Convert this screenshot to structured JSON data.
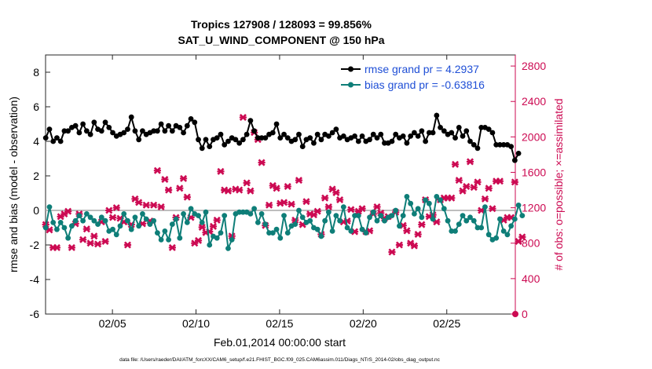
{
  "chart_data": {
    "type": "line",
    "title": "Tropics 127908 / 128093 = 99.856%",
    "subtitle": "SAT_U_WIND_COMPONENT @ 150 hPa",
    "xlabel": "Feb.01,2014 00:00:00 start",
    "ylabel": "rmse and bias (model - observation)",
    "ylabel_right": "# of obs: o=possible; ×=assimilated",
    "xlim": [
      1,
      29.1
    ],
    "ylim": [
      -6,
      9
    ],
    "ylim_right": [
      0,
      2925
    ],
    "x_tick_values": [
      5,
      10,
      15,
      20,
      25
    ],
    "x_tick_labels": [
      "02/05",
      "02/10",
      "02/15",
      "02/20",
      "02/25"
    ],
    "y_ticks": [
      "-6",
      "-4",
      "-2",
      "0",
      "2",
      "4",
      "6",
      "8"
    ],
    "y_tick_values": [
      -6,
      -4,
      -2,
      0,
      2,
      4,
      6,
      8
    ],
    "y_right_ticks": [
      "0",
      "400",
      "800",
      "1200",
      "1600",
      "2000",
      "2400",
      "2800"
    ],
    "y_right_tick_values": [
      0,
      400,
      800,
      1200,
      1600,
      2000,
      2400,
      2800
    ],
    "legend": [
      "rmse grand pr = 4.2937",
      "bias grand pr = -0.63816"
    ],
    "legend_position": "top-right",
    "zero_line": true,
    "series": [
      {
        "name": "rmse grand pr = 4.2937",
        "color": "#000000",
        "marker": "circle",
        "values": [
          4.2,
          4.7,
          4.0,
          4.2,
          4.0,
          4.6,
          4.6,
          4.8,
          4.9,
          4.5,
          5.0,
          4.6,
          4.4,
          5.1,
          4.7,
          4.6,
          5.1,
          4.8,
          4.5,
          4.3,
          4.4,
          4.5,
          4.7,
          5.4,
          4.6,
          4.1,
          4.6,
          4.4,
          4.5,
          4.6,
          4.6,
          5.0,
          4.6,
          4.9,
          4.6,
          4.9,
          4.8,
          4.5,
          4.9,
          5.3,
          5.1,
          4.1,
          3.6,
          4.1,
          3.7,
          4.1,
          4.2,
          4.4,
          3.8,
          4.0,
          4.2,
          4.1,
          3.9,
          4.1,
          4.4,
          5.2,
          4.6,
          4.2,
          4.2,
          4.2,
          4.4,
          4.5,
          5.0,
          4.2,
          4.4,
          4.2,
          4.0,
          4.1,
          4.4,
          3.7,
          4.1,
          4.2,
          3.9,
          4.4,
          4.1,
          4.4,
          4.3,
          4.5,
          4.7,
          4.2,
          4.3,
          4.1,
          4.2,
          4.3,
          4.0,
          4.3,
          4.0,
          4.1,
          4.4,
          4.2,
          4.4,
          3.9,
          3.9,
          4.0,
          4.4,
          4.2,
          4.3,
          3.9,
          4.3,
          4.5,
          4.3,
          4.6,
          4.0,
          4.5,
          4.5,
          5.5,
          4.8,
          4.6,
          4.4,
          4.5,
          4.2,
          4.8,
          4.3,
          4.6,
          4.0,
          3.8,
          3.6,
          4.8,
          4.8,
          4.7,
          4.5,
          3.8,
          3.8,
          3.8,
          3.8,
          3.7,
          2.9,
          3.3
        ]
      },
      {
        "name": "bias grand pr = -0.63816",
        "color": "#0e7e78",
        "marker": "circle",
        "values": [
          -1.0,
          0.2,
          -0.7,
          -1.1,
          -0.7,
          -1.0,
          -1.6,
          -0.9,
          -0.6,
          -0.3,
          -0.6,
          -0.2,
          -0.4,
          -0.6,
          -0.8,
          -0.4,
          -0.6,
          -1.2,
          -1.1,
          -1.4,
          -0.9,
          -0.2,
          -0.6,
          -1.1,
          -0.4,
          -0.9,
          -0.2,
          -0.5,
          -0.8,
          -0.6,
          -1.3,
          -1.7,
          -1.2,
          -1.7,
          -0.8,
          -0.5,
          -1.6,
          -0.2,
          -0.7,
          0.1,
          -0.2,
          -0.3,
          -0.7,
          -0.1,
          -2.0,
          -1.5,
          -1.6,
          -1.3,
          -0.3,
          -2.2,
          -1.7,
          -0.2,
          -0.1,
          -0.1,
          -0.1,
          -0.2,
          0.1,
          -0.7,
          -0.2,
          -0.8,
          -1.3,
          -1.3,
          -1.1,
          -1.6,
          -0.3,
          -1.3,
          -0.9,
          -0.8,
          0.0,
          -0.4,
          -0.7,
          -0.6,
          -1.0,
          -1.1,
          -1.5,
          -0.6,
          -0.1,
          -1.2,
          -0.3,
          -0.6,
          0.2,
          -1.0,
          -1.2,
          -0.3,
          -0.3,
          -1.1,
          -1.3,
          -0.4,
          -0.1,
          -0.6,
          -0.3,
          -0.6,
          -0.4,
          -0.3,
          0.0,
          -0.9,
          -0.3,
          0.8,
          0.4,
          -0.2,
          0.1,
          -0.4,
          0.6,
          0.4,
          -0.5,
          0.8,
          0.6,
          0.1,
          -0.6,
          -1.2,
          -1.2,
          -0.8,
          -0.3,
          -0.6,
          -0.4,
          -0.6,
          -1.0,
          -1.0,
          0.2,
          -1.4,
          -1.7,
          -1.6,
          -0.5,
          -1.2,
          -1.4,
          -0.9,
          -0.5,
          0.3,
          -0.3
        ]
      },
      {
        "name": "# of obs (possible/assimilated)",
        "color": "#cc0a52",
        "marker": "cross",
        "axis": "right",
        "values": [
          1010,
          950,
          750,
          750,
          1100,
          1130,
          1160,
          750,
          1020,
          1130,
          840,
          960,
          800,
          880,
          790,
          1040,
          820,
          1170,
          1090,
          1200,
          1080,
          1040,
          780,
          1010,
          1300,
          1260,
          1020,
          1230,
          1050,
          1230,
          1620,
          1210,
          1520,
          1400,
          750,
          1090,
          1420,
          1530,
          1320,
          1090,
          800,
          830,
          980,
          920,
          930,
          990,
          1060,
          1610,
          1400,
          1390,
          880,
          1410,
          1400,
          2220,
          1480,
          1390,
          2050,
          1970,
          1710,
          1000,
          1230,
          1450,
          1420,
          1250,
          1260,
          1440,
          1240,
          1060,
          1510,
          1010,
          1270,
          1130,
          1120,
          1160,
          900,
          1310,
          1210,
          1410,
          1370,
          1290,
          1040,
          1050,
          1180,
          930,
          1160,
          1190,
          930,
          940,
          1130,
          1210,
          1140,
          1080,
          1100,
          700,
          1150,
          780,
          1000,
          940,
          800,
          770,
          900,
          1010,
          1290,
          1100,
          1120,
          1040,
          1290,
          1310,
          1310,
          1310,
          1690,
          1510,
          1390,
          1440,
          1720,
          1430,
          1490,
          1170,
          1300,
          1420,
          1190,
          1500,
          1500,
          1060,
          1090,
          1090,
          1490,
          820,
          870
        ]
      }
    ]
  },
  "footer": "data file: /Users/raeder/DAI/ATM_forcXX/CAM6_setup/f.e21.FHIST_BGC.f09_025.CAM6assim.011/Diags_NTrS_2014-02/obs_diag_output.nc"
}
